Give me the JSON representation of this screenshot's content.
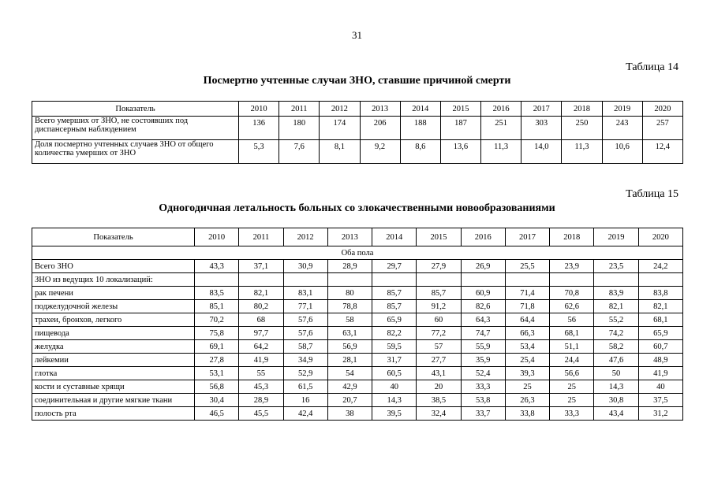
{
  "page_number": "31",
  "table14": {
    "label": "Таблица 14",
    "title": "Посмертно учтенные случаи ЗНО, ставшие причиной смерти",
    "header": [
      "Показатель",
      "2010",
      "2011",
      "2012",
      "2013",
      "2014",
      "2015",
      "2016",
      "2017",
      "2018",
      "2019",
      "2020"
    ],
    "rows": [
      {
        "label": "Всего умерших от ЗНО, не состоявших под диспансерным наблюдением",
        "values": [
          "136",
          "180",
          "174",
          "206",
          "188",
          "187",
          "251",
          "303",
          "250",
          "243",
          "257"
        ]
      },
      {
        "label": "Доля посмертно учтенных случаев ЗНО от общего количества умерших от ЗНО",
        "values": [
          "5,3",
          "7,6",
          "8,1",
          "9,2",
          "8,6",
          "13,6",
          "11,3",
          "14,0",
          "11,3",
          "10,6",
          "12,4"
        ]
      }
    ]
  },
  "table15": {
    "label": "Таблица 15",
    "title": "Одногодичная летальность больных со злокачественными новообразованиями",
    "header": [
      "Показатель",
      "2010",
      "2011",
      "2012",
      "2013",
      "2014",
      "2015",
      "2016",
      "2017",
      "2018",
      "2019",
      "2020"
    ],
    "section": "Оба пола",
    "rows": [
      {
        "label": "Всего ЗНО",
        "values": [
          "43,3",
          "37,1",
          "30,9",
          "28,9",
          "29,7",
          "27,9",
          "26,9",
          "25,5",
          "23,9",
          "23,5",
          "24,2"
        ]
      },
      {
        "label": "ЗНО из ведущих 10 локализаций:",
        "values": [
          "",
          "",
          "",
          "",
          "",
          "",
          "",
          "",
          "",
          "",
          ""
        ]
      },
      {
        "label": "рак печени",
        "values": [
          "83,5",
          "82,1",
          "83,1",
          "80",
          "85,7",
          "85,7",
          "60,9",
          "71,4",
          "70,8",
          "83,9",
          "83,8"
        ]
      },
      {
        "label": "поджелудочной железы",
        "values": [
          "85,1",
          "80,2",
          "77,1",
          "78,8",
          "85,7",
          "91,2",
          "82,6",
          "71,8",
          "62,6",
          "82,1",
          "82,1"
        ]
      },
      {
        "label": "трахеи, бронхов, легкого",
        "values": [
          "70,2",
          "68",
          "57,6",
          "58",
          "65,9",
          "60",
          "64,3",
          "64,4",
          "56",
          "55,2",
          "68,1"
        ]
      },
      {
        "label": "пищевода",
        "values": [
          "75,8",
          "97,7",
          "57,6",
          "63,1",
          "82,2",
          "77,2",
          "74,7",
          "66,3",
          "68,1",
          "74,2",
          "65,9"
        ]
      },
      {
        "label": "желудка",
        "values": [
          "69,1",
          "64,2",
          "58,7",
          "56,9",
          "59,5",
          "57",
          "55,9",
          "53,4",
          "51,1",
          "58,2",
          "60,7"
        ]
      },
      {
        "label": "лейкемии",
        "values": [
          "27,8",
          "41,9",
          "34,9",
          "28,1",
          "31,7",
          "27,7",
          "35,9",
          "25,4",
          "24,4",
          "47,6",
          "48,9"
        ]
      },
      {
        "label": "глотка",
        "values": [
          "53,1",
          "55",
          "52,9",
          "54",
          "60,5",
          "43,1",
          "52,4",
          "39,3",
          "56,6",
          "50",
          "41,9"
        ]
      },
      {
        "label": "кости и суставные хрящи",
        "values": [
          "56,8",
          "45,3",
          "61,5",
          "42,9",
          "40",
          "20",
          "33,3",
          "25",
          "25",
          "14,3",
          "40"
        ]
      },
      {
        "label": "соединительная и другие мягкие ткани",
        "values": [
          "30,4",
          "28,9",
          "16",
          "20,7",
          "14,3",
          "38,5",
          "53,8",
          "26,3",
          "25",
          "30,8",
          "37,5"
        ]
      },
      {
        "label": "полость рта",
        "values": [
          "46,5",
          "45,5",
          "42,4",
          "38",
          "39,5",
          "32,4",
          "33,7",
          "33,8",
          "33,3",
          "43,4",
          "31,2"
        ]
      }
    ]
  }
}
